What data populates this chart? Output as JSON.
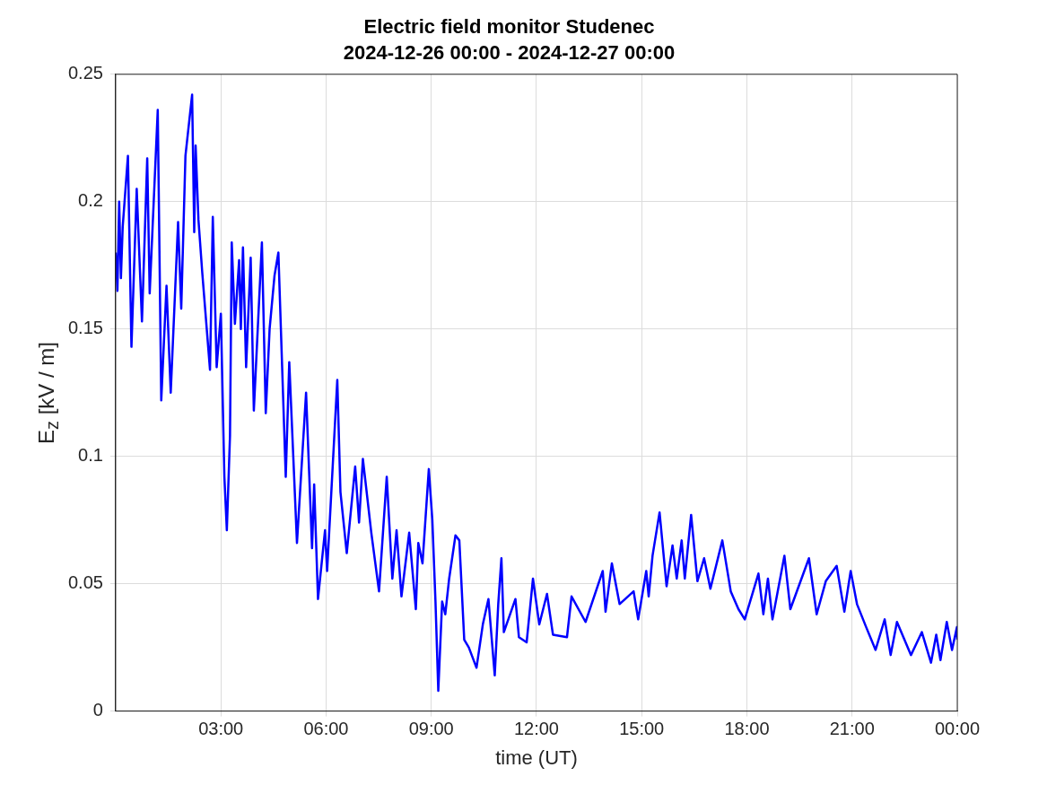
{
  "chart_data": {
    "type": "line",
    "title": "Electric field monitor Studenec",
    "subtitle": "2024-12-26 00:00 - 2024-12-27 00:00",
    "xlabel": "time (UT)",
    "ylabel": "E$_{z}$ [kV / m]",
    "xlim": [
      0,
      24
    ],
    "xticks": [
      {
        "value": 3,
        "label": "03:00"
      },
      {
        "value": 6,
        "label": "06:00"
      },
      {
        "value": 9,
        "label": "09:00"
      },
      {
        "value": 12,
        "label": "12:00"
      },
      {
        "value": 15,
        "label": "15:00"
      },
      {
        "value": 18,
        "label": "18:00"
      },
      {
        "value": 21,
        "label": "21:00"
      },
      {
        "value": 24,
        "label": "00:00"
      }
    ],
    "ylim": [
      0,
      0.25
    ],
    "yticks": [
      0,
      0.05,
      0.1,
      0.15,
      0.2,
      0.25
    ],
    "grid": true,
    "x": [
      0,
      0.05,
      0.1,
      0.15,
      0.2,
      0.35,
      0.45,
      0.6,
      0.75,
      0.9,
      0.97,
      1.2,
      1.3,
      1.45,
      1.57,
      1.78,
      1.87,
      1.99,
      2.18,
      2.24,
      2.28,
      2.36,
      2.47,
      2.69,
      2.77,
      2.88,
      3.0,
      3.1,
      3.17,
      3.26,
      3.31,
      3.4,
      3.52,
      3.57,
      3.63,
      3.72,
      3.85,
      3.94,
      4.17,
      4.28,
      4.39,
      4.53,
      4.64,
      4.85,
      4.95,
      5.17,
      5.43,
      5.6,
      5.66,
      5.77,
      5.97,
      6.03,
      6.32,
      6.41,
      6.59,
      6.83,
      6.94,
      7.05,
      7.29,
      7.51,
      7.73,
      7.89,
      8.01,
      8.15,
      8.37,
      8.56,
      8.63,
      8.75,
      8.93,
      9.03,
      9.12,
      9.2,
      9.31,
      9.4,
      9.51,
      9.69,
      9.8,
      9.94,
      10.07,
      10.29,
      10.47,
      10.63,
      10.81,
      10.91,
      11.0,
      11.07,
      11.4,
      11.5,
      11.72,
      11.9,
      12.08,
      12.3,
      12.47,
      12.87,
      13.0,
      13.4,
      13.89,
      13.97,
      14.15,
      14.37,
      14.77,
      14.9,
      15.13,
      15.2,
      15.31,
      15.51,
      15.71,
      15.88,
      16.0,
      16.14,
      16.23,
      16.41,
      16.59,
      16.78,
      16.96,
      17.3,
      17.54,
      17.76,
      17.94,
      18.33,
      18.47,
      18.6,
      18.73,
      19.07,
      19.24,
      19.77,
      19.99,
      20.25,
      20.56,
      20.78,
      20.96,
      21.14,
      21.4,
      21.67,
      21.93,
      22.1,
      22.28,
      22.68,
      22.99,
      23.25,
      23.4,
      23.52,
      23.7,
      23.85,
      23.99,
      24
    ],
    "series": [
      {
        "color": "#0000ff",
        "values": [
          0.18,
          0.165,
          0.2,
          0.17,
          0.19,
          0.218,
          0.143,
          0.205,
          0.153,
          0.217,
          0.164,
          0.236,
          0.122,
          0.167,
          0.125,
          0.192,
          0.158,
          0.218,
          0.242,
          0.188,
          0.222,
          0.193,
          0.172,
          0.134,
          0.194,
          0.135,
          0.156,
          0.092,
          0.071,
          0.108,
          0.184,
          0.152,
          0.177,
          0.15,
          0.182,
          0.135,
          0.178,
          0.118,
          0.184,
          0.117,
          0.15,
          0.171,
          0.18,
          0.092,
          0.137,
          0.066,
          0.125,
          0.064,
          0.089,
          0.044,
          0.071,
          0.055,
          0.13,
          0.086,
          0.062,
          0.096,
          0.074,
          0.099,
          0.07,
          0.047,
          0.092,
          0.052,
          0.071,
          0.045,
          0.07,
          0.04,
          0.066,
          0.058,
          0.095,
          0.075,
          0.043,
          0.008,
          0.043,
          0.038,
          0.052,
          0.069,
          0.067,
          0.028,
          0.025,
          0.017,
          0.034,
          0.044,
          0.014,
          0.042,
          0.06,
          0.031,
          0.044,
          0.029,
          0.027,
          0.052,
          0.034,
          0.046,
          0.03,
          0.029,
          0.045,
          0.035,
          0.055,
          0.039,
          0.058,
          0.042,
          0.047,
          0.036,
          0.055,
          0.045,
          0.061,
          0.078,
          0.049,
          0.065,
          0.052,
          0.067,
          0.052,
          0.077,
          0.051,
          0.06,
          0.048,
          0.067,
          0.047,
          0.04,
          0.036,
          0.054,
          0.038,
          0.052,
          0.036,
          0.061,
          0.04,
          0.06,
          0.038,
          0.051,
          0.057,
          0.039,
          0.055,
          0.042,
          0.033,
          0.024,
          0.036,
          0.022,
          0.035,
          0.022,
          0.031,
          0.019,
          0.03,
          0.02,
          0.035,
          0.024,
          0.033,
          0.028
        ]
      }
    ]
  }
}
